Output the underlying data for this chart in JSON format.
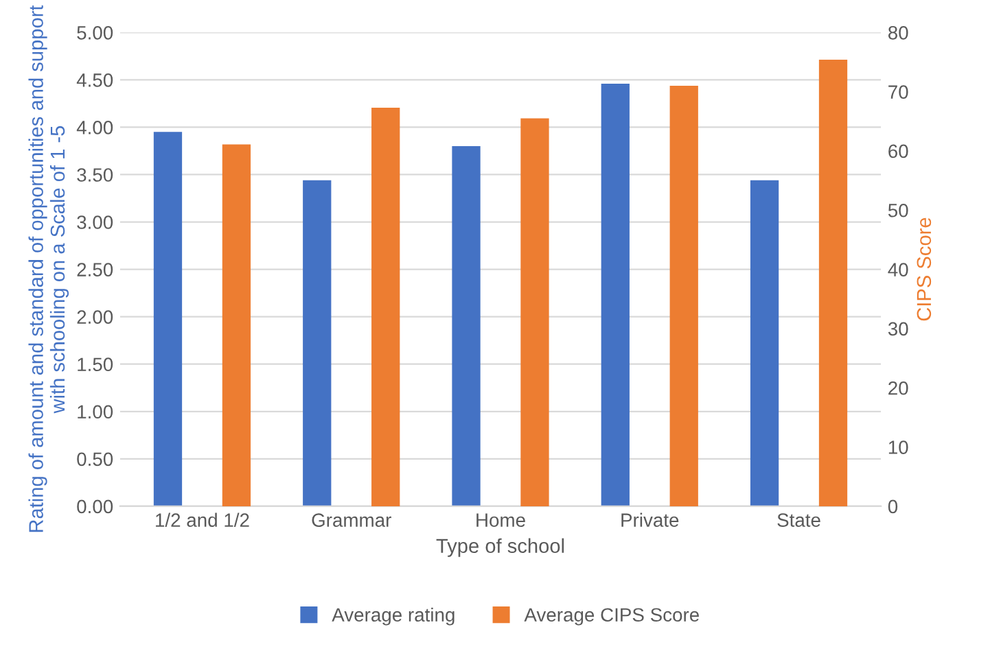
{
  "chart_data": {
    "type": "bar",
    "categories": [
      "1/2 and 1/2",
      "Grammar",
      "Home",
      "Private",
      "State"
    ],
    "xlabel": "Type of school",
    "ylabel": "Rating of amount and standard of opportunities and support with schooling on a Scale of 1 -5",
    "y2label": "CIPS Score",
    "series": [
      {
        "name": "Average rating",
        "color": "#4472c4",
        "values": [
          3.95,
          3.44,
          3.8,
          4.46,
          3.44
        ]
      },
      {
        "name": "Average CIPS Score",
        "color": "#ed7d31",
        "axis": "y2",
        "values": [
          61.1,
          67.3,
          65.5,
          71.0,
          75.4
        ]
      }
    ],
    "ylim": [
      0,
      5
    ],
    "yticks": [
      {
        "value": 0,
        "label": "0.00"
      },
      {
        "value": 0.5,
        "label": "0.50"
      },
      {
        "value": 1,
        "label": "1.00"
      },
      {
        "value": 1.5,
        "label": "1.50"
      },
      {
        "value": 2,
        "label": "2.00"
      },
      {
        "value": 2.5,
        "label": "2.50"
      },
      {
        "value": 3,
        "label": "3.00"
      },
      {
        "value": 3.5,
        "label": "3.50"
      },
      {
        "value": 4,
        "label": "4.00"
      },
      {
        "value": 4.5,
        "label": "4.50"
      },
      {
        "value": 5,
        "label": "5.00"
      }
    ],
    "y2lim": [
      0,
      80
    ],
    "y2ticks": [
      0,
      10,
      20,
      30,
      40,
      50,
      60,
      70,
      80
    ],
    "grid": "y",
    "legend": "bottom"
  }
}
